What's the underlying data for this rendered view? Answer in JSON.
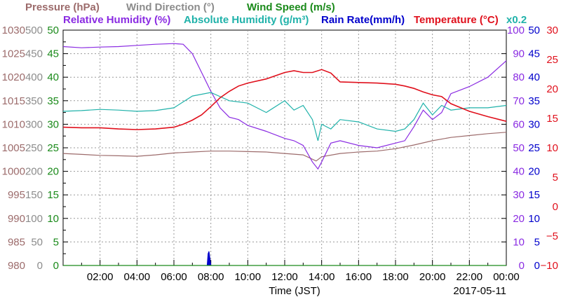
{
  "chart_data": {
    "type": "line",
    "date_label": "2017-05-11",
    "xlabel": "Time (JST)",
    "x_ticks": [
      "02:00",
      "04:00",
      "06:00",
      "08:00",
      "10:00",
      "12:00",
      "14:00",
      "16:00",
      "18:00",
      "20:00",
      "22:00",
      "00:00"
    ],
    "xlim_hours": [
      0,
      24
    ],
    "grid": true,
    "legend": {
      "row1": [
        {
          "text": "Pressure (hPa)",
          "color": "#9c6b6b"
        },
        {
          "text": "Wind Direction (°)",
          "color": "#8c8c8c"
        },
        {
          "text": "Wind Speed (m/s)",
          "color": "#1a8a1a"
        }
      ],
      "row2": [
        {
          "text": "Relative Humidity (%)",
          "color": "#8a2be2"
        },
        {
          "text": "Absolute Humidity (g/m³)",
          "color": "#20b2aa"
        },
        {
          "text": "Rain Rate(mm/h)",
          "color": "#0000cc"
        },
        {
          "text": "Temperature (°C)",
          "color": "#e0101c"
        }
      ],
      "scale_note": "x0.2"
    },
    "axes": {
      "pressure": {
        "ticks": [
          "1030",
          "1025",
          "1020",
          "1015",
          "1010",
          "1005",
          "1000",
          "995",
          "990",
          "985",
          "980"
        ],
        "ylim": [
          980,
          1030
        ],
        "color": "#9c6b6b"
      },
      "wind_direction": {
        "ticks": [
          "500",
          "450",
          "400",
          "350",
          "300",
          "250",
          "200",
          "150",
          "100",
          "50",
          "0"
        ],
        "ylim": [
          0,
          500
        ],
        "color": "#8c8c8c"
      },
      "wind_speed": {
        "ticks": [
          "50",
          "45",
          "40",
          "35",
          "30",
          "25",
          "20",
          "15",
          "10",
          "5",
          "0"
        ],
        "ylim": [
          0,
          50
        ],
        "color": "#1a8a1a"
      },
      "relative_humidity": {
        "ticks": [
          "100",
          "90",
          "80",
          "70",
          "60",
          "50",
          "40",
          "30",
          "20",
          "10",
          "0"
        ],
        "ylim": [
          0,
          100
        ],
        "color": "#8a2be2"
      },
      "rain_rate": {
        "ticks": [
          "50",
          "45",
          "40",
          "35",
          "30",
          "25",
          "20",
          "15",
          "10",
          "5",
          "0"
        ],
        "ylim": [
          0,
          50
        ],
        "color": "#0000cc"
      },
      "temperature": {
        "ticks": [
          "30",
          "25",
          "20",
          "15",
          "10",
          "5",
          "0",
          "−5",
          "−10"
        ],
        "ylim": [
          -10,
          30
        ],
        "color": "#e0101c"
      }
    },
    "series": [
      {
        "name": "Pressure (hPa)",
        "axis": "pressure",
        "color": "#9c6b6b",
        "x": [
          0,
          1,
          2,
          3,
          4,
          5,
          6,
          7,
          8,
          9,
          10,
          11,
          12,
          13,
          13.7,
          14,
          15,
          16,
          17,
          18,
          19,
          20,
          21,
          22,
          23,
          24
        ],
        "y": [
          1003.8,
          1003.6,
          1003.4,
          1003.3,
          1003.2,
          1003.5,
          1003.9,
          1004.1,
          1004.3,
          1004.3,
          1004.2,
          1004.1,
          1003.8,
          1003.5,
          1002.2,
          1003.1,
          1003.8,
          1004.1,
          1004.3,
          1004.8,
          1005.6,
          1006.5,
          1007.2,
          1007.6,
          1008.0,
          1008.3
        ]
      },
      {
        "name": "Relative Humidity (%)",
        "axis": "relative_humidity",
        "color": "#8a2be2",
        "x": [
          0,
          1,
          2,
          3,
          4,
          5,
          6,
          6.5,
          7,
          7.5,
          8,
          8.5,
          9,
          9.5,
          10,
          11,
          12,
          12.5,
          13,
          13.5,
          13.8,
          14,
          14.5,
          15,
          16,
          17,
          18,
          18.5,
          19,
          19.5,
          20,
          20.5,
          21,
          22,
          23,
          24
        ],
        "y": [
          93,
          92.5,
          92.8,
          93,
          93.5,
          94,
          94.3,
          94,
          90,
          82,
          74,
          67,
          63,
          62,
          59.5,
          57,
          54,
          53,
          51,
          44,
          41,
          44,
          52,
          53,
          51,
          50,
          52,
          53,
          59,
          66,
          62,
          65,
          73,
          76,
          80,
          87
        ]
      },
      {
        "name": "Absolute Humidity (g/m³)",
        "axis": "relative_humidity",
        "color": "#20b2aa",
        "x": [
          0,
          1,
          2,
          3,
          4,
          5,
          6,
          7,
          8,
          9,
          10,
          11,
          12,
          12.5,
          13,
          13.5,
          13.8,
          14,
          14.5,
          15,
          16,
          17,
          18,
          18.5,
          19,
          19.5,
          20,
          20.5,
          21,
          22,
          23,
          24
        ],
        "y": [
          65.5,
          65.8,
          66.3,
          66,
          65.5,
          65.8,
          67,
          72,
          73.5,
          70,
          69,
          65,
          70,
          66,
          68,
          62,
          53,
          60,
          58,
          62,
          61,
          58,
          57,
          58,
          62,
          69,
          64,
          68,
          66,
          67,
          67,
          68
        ]
      },
      {
        "name": "Temperature (°C)",
        "axis": "temperature",
        "color": "#e0101c",
        "x": [
          0,
          1,
          2,
          3,
          4,
          5,
          6,
          6.5,
          7,
          7.5,
          8,
          8.5,
          9,
          9.5,
          10,
          11,
          12,
          12.5,
          13,
          13.5,
          14,
          14.5,
          15,
          16,
          17,
          18,
          18.5,
          19,
          19.5,
          20,
          20.5,
          21,
          22,
          23,
          24
        ],
        "y": [
          13.5,
          13.4,
          13.4,
          13.2,
          13.1,
          13.2,
          13.5,
          14.0,
          14.7,
          15.6,
          17.0,
          18.5,
          19.6,
          20.5,
          21.0,
          21.7,
          22.8,
          23.1,
          22.8,
          22.8,
          23.3,
          22.7,
          21.2,
          21.1,
          21.0,
          20.8,
          20.5,
          20.1,
          19.5,
          19.0,
          18.7,
          17.5,
          16.2,
          15.3,
          14.5
        ]
      },
      {
        "name": "Rain Rate(mm/h)",
        "axis": "rain_rate",
        "color": "#0000cc",
        "x": [
          7.8,
          7.85,
          7.9,
          7.95,
          8.0
        ],
        "y": [
          0,
          2.5,
          3.0,
          1.5,
          0
        ]
      },
      {
        "name": "Wind Speed (m/s)",
        "axis": "wind_speed",
        "color": "#1a8a1a",
        "x": [
          0,
          24
        ],
        "y": [
          0,
          0
        ]
      }
    ]
  }
}
